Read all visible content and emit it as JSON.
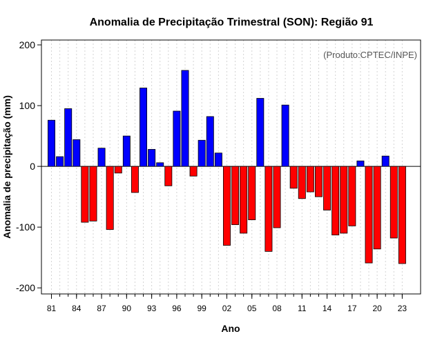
{
  "chart_data": {
    "type": "bar",
    "title": "Anomalia de Precipitação Trimestral (SON): Região 91",
    "credit": "(Produto:CPTEC/INPE)",
    "xlabel": "Ano",
    "ylabel": "Anomalia de precipitação (mm)",
    "ylim": [
      -210,
      208
    ],
    "yticks": [
      -200,
      -100,
      0,
      100,
      200
    ],
    "xlim": [
      1979.8,
      2025.2
    ],
    "xtick_years": [
      1981,
      1984,
      1987,
      1990,
      1993,
      1996,
      1999,
      2002,
      2005,
      2008,
      2011,
      2014,
      2017,
      2020,
      2023
    ],
    "xtick_labels": [
      "81",
      "84",
      "87",
      "90",
      "93",
      "96",
      "99",
      "02",
      "05",
      "08",
      "11",
      "14",
      "17",
      "20",
      "23"
    ],
    "years": [
      1981,
      1982,
      1983,
      1984,
      1985,
      1986,
      1987,
      1988,
      1989,
      1990,
      1991,
      1992,
      1993,
      1994,
      1995,
      1996,
      1997,
      1998,
      1999,
      2000,
      2001,
      2002,
      2003,
      2004,
      2005,
      2006,
      2007,
      2008,
      2009,
      2010,
      2011,
      2012,
      2013,
      2014,
      2015,
      2016,
      2017,
      2018,
      2019,
      2020,
      2021,
      2022,
      2023
    ],
    "values": [
      76,
      16,
      95,
      44,
      -92,
      -90,
      30,
      -104,
      -11,
      50,
      -43,
      129,
      28,
      6,
      -32,
      91,
      158,
      -16,
      43,
      82,
      22,
      -130,
      -96,
      -110,
      -88,
      112,
      -140,
      -101,
      101,
      -36,
      -53,
      -42,
      -50,
      -72,
      -113,
      -110,
      -98,
      9,
      -159,
      -136,
      17,
      -118,
      -160
    ],
    "colors": {
      "positive": "#0000ff",
      "negative": "#ff0000",
      "grid": "#d3d3d3",
      "axis": "#000000"
    },
    "grid": true,
    "legend": "none"
  }
}
